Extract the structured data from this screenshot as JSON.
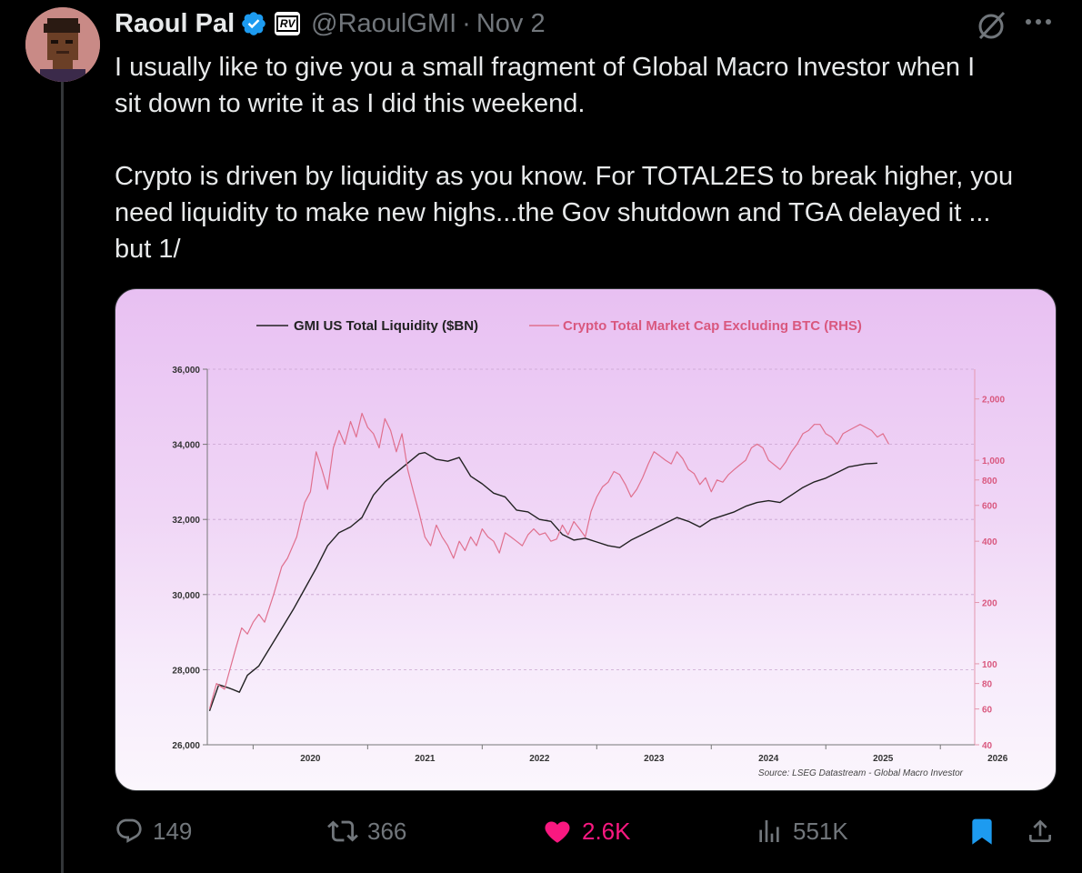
{
  "tweet": {
    "author_name": "Raoul Pal",
    "handle": "@RaoulGMI",
    "separator": "·",
    "date": "Nov 2",
    "affiliate_badge": "RV",
    "text": "I usually like to give you a small fragment of Global Macro Investor when I\nsit down to write it as I did this weekend.\n\nCrypto is driven by liquidity as you know. For TOTAL2ES to break higher, you\nneed liquidity to make new highs...the Gov shutdown and TGA delayed it ...\nbut 1/"
  },
  "actions": {
    "replies": "149",
    "reposts": "366",
    "likes": "2.6K",
    "views": "551K"
  },
  "colors": {
    "background": "#000000",
    "text": "#e7e9ea",
    "muted": "#71767b",
    "like": "#f91880",
    "verified": "#1d9bf0",
    "bookmark": "#1d9bf0",
    "liquidity_line": "#222222",
    "crypto_line": "#e0708e"
  },
  "icons": [
    "verified-badge-icon",
    "grok-icon",
    "more-icon",
    "reply-icon",
    "repost-icon",
    "like-icon",
    "views-icon",
    "bookmark-icon",
    "share-icon"
  ],
  "chart_data": {
    "type": "line",
    "legend": [
      "GMI US Total Liquidity ($BN)",
      "Crypto Total Market Cap Excluding BTC (RHS)"
    ],
    "legend_position": "top",
    "source": "Source: LSEG Datastream - Global Macro Investor",
    "x_ticks": [
      "2020",
      "2021",
      "2022",
      "2023",
      "2024",
      "2025",
      "2026"
    ],
    "xlim": [
      2019.6,
      2026.3
    ],
    "left_axis": {
      "ticks": [
        "36,000",
        "34,000",
        "32,000",
        "30,000",
        "28,000",
        "26,000"
      ],
      "ylim": [
        26000,
        36000
      ]
    },
    "right_axis": {
      "scale": "log",
      "ticks": [
        "2,000",
        "1,000",
        "800",
        "600",
        "400",
        "200",
        "100",
        "80",
        "60",
        "40"
      ],
      "ylim": [
        40,
        2800
      ]
    },
    "grid": "horizontal dashed",
    "series": [
      {
        "name": "GMI US Total Liquidity ($BN)",
        "axis": "left",
        "x": [
          2019.62,
          2019.7,
          2019.8,
          2019.88,
          2019.95,
          2020.05,
          2020.15,
          2020.25,
          2020.35,
          2020.45,
          2020.55,
          2020.65,
          2020.75,
          2020.85,
          2020.95,
          2021.05,
          2021.15,
          2021.25,
          2021.35,
          2021.45,
          2021.5,
          2021.6,
          2021.7,
          2021.8,
          2021.9,
          2022.0,
          2022.1,
          2022.2,
          2022.3,
          2022.4,
          2022.5,
          2022.6,
          2022.7,
          2022.8,
          2022.9,
          2023.0,
          2023.1,
          2023.2,
          2023.3,
          2023.4,
          2023.5,
          2023.6,
          2023.7,
          2023.8,
          2023.9,
          2024.0,
          2024.1,
          2024.2,
          2024.3,
          2024.4,
          2024.5,
          2024.6,
          2024.7,
          2024.8,
          2024.9,
          2025.0,
          2025.1,
          2025.2,
          2025.35,
          2025.45
        ],
        "values": [
          26900,
          27600,
          27500,
          27400,
          27850,
          28100,
          28600,
          29100,
          29600,
          30150,
          30700,
          31300,
          31650,
          31800,
          32050,
          32650,
          33000,
          33250,
          33500,
          33750,
          33780,
          33600,
          33550,
          33650,
          33150,
          32950,
          32700,
          32600,
          32250,
          32200,
          32000,
          31950,
          31600,
          31450,
          31500,
          31400,
          31300,
          31250,
          31450,
          31600,
          31750,
          31900,
          32050,
          31950,
          31800,
          32000,
          32100,
          32200,
          32350,
          32450,
          32500,
          32450,
          32650,
          32850,
          33000,
          33100,
          33250,
          33400,
          33480,
          33500
        ]
      },
      {
        "name": "Crypto Total Market Cap Excluding BTC (RHS)",
        "axis": "right",
        "x": [
          2019.62,
          2019.68,
          2019.75,
          2019.8,
          2019.85,
          2019.9,
          2019.95,
          2020.0,
          2020.05,
          2020.1,
          2020.18,
          2020.25,
          2020.3,
          2020.38,
          2020.45,
          2020.5,
          2020.55,
          2020.6,
          2020.65,
          2020.7,
          2020.75,
          2020.8,
          2020.85,
          2020.9,
          2020.95,
          2021.0,
          2021.05,
          2021.1,
          2021.15,
          2021.2,
          2021.25,
          2021.3,
          2021.35,
          2021.4,
          2021.45,
          2021.5,
          2021.55,
          2021.6,
          2021.65,
          2021.7,
          2021.75,
          2021.8,
          2021.85,
          2021.9,
          2021.95,
          2022.0,
          2022.05,
          2022.1,
          2022.15,
          2022.2,
          2022.25,
          2022.3,
          2022.35,
          2022.4,
          2022.45,
          2022.5,
          2022.55,
          2022.6,
          2022.65,
          2022.7,
          2022.75,
          2022.8,
          2022.85,
          2022.9,
          2022.95,
          2023.0,
          2023.05,
          2023.1,
          2023.15,
          2023.2,
          2023.25,
          2023.3,
          2023.35,
          2023.4,
          2023.45,
          2023.5,
          2023.55,
          2023.6,
          2023.65,
          2023.7,
          2023.75,
          2023.8,
          2023.85,
          2023.9,
          2023.95,
          2024.0,
          2024.05,
          2024.1,
          2024.15,
          2024.2,
          2024.25,
          2024.3,
          2024.35,
          2024.4,
          2024.45,
          2024.5,
          2024.55,
          2024.6,
          2024.65,
          2024.7,
          2024.75,
          2024.8,
          2024.85,
          2024.9,
          2024.95,
          2025.0,
          2025.05,
          2025.1,
          2025.15,
          2025.2,
          2025.25,
          2025.3,
          2025.35,
          2025.4,
          2025.45,
          2025.5,
          2025.55
        ],
        "values": [
          60,
          80,
          75,
          95,
          120,
          150,
          140,
          160,
          175,
          160,
          220,
          300,
          330,
          420,
          620,
          700,
          1100,
          900,
          720,
          1150,
          1400,
          1200,
          1550,
          1300,
          1700,
          1450,
          1350,
          1150,
          1600,
          1400,
          1100,
          1350,
          900,
          700,
          550,
          420,
          380,
          480,
          420,
          380,
          330,
          400,
          360,
          420,
          380,
          460,
          420,
          400,
          350,
          440,
          420,
          400,
          380,
          430,
          460,
          430,
          440,
          400,
          410,
          480,
          430,
          500,
          460,
          420,
          560,
          660,
          740,
          780,
          880,
          850,
          760,
          660,
          720,
          820,
          960,
          1100,
          1050,
          1000,
          960,
          1100,
          1020,
          900,
          860,
          760,
          820,
          700,
          800,
          780,
          850,
          900,
          950,
          1000,
          1150,
          1200,
          1150,
          1000,
          950,
          900,
          980,
          1100,
          1200,
          1350,
          1400,
          1500,
          1500,
          1350,
          1300,
          1200,
          1350,
          1400,
          1450,
          1500,
          1450,
          1400,
          1300,
          1350,
          1200
        ]
      }
    ]
  }
}
